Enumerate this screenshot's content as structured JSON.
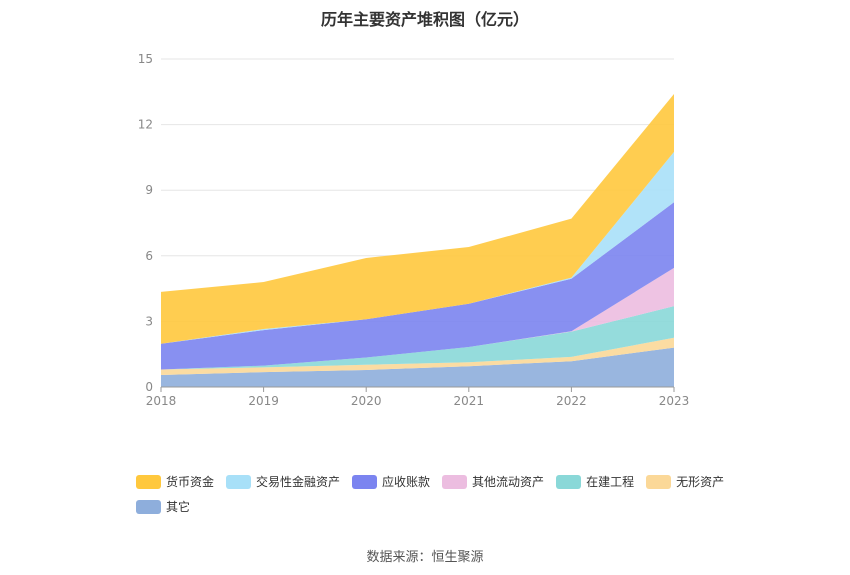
{
  "title": "历年主要资产堆积图（亿元）",
  "source": "数据来源：恒生聚源",
  "chart_data": {
    "type": "area",
    "stacked": true,
    "x": [
      "2018",
      "2019",
      "2020",
      "2021",
      "2022",
      "2023"
    ],
    "ylim": [
      0,
      15
    ],
    "yticks": [
      0,
      3,
      6,
      9,
      12,
      15
    ],
    "grid": true,
    "legend_position": "bottom",
    "series": [
      {
        "name": "其它",
        "color": "#8eaedc",
        "values": [
          0.55,
          0.68,
          0.78,
          0.95,
          1.18,
          1.8
        ]
      },
      {
        "name": "无形资产",
        "color": "#fbd898",
        "values": [
          0.25,
          0.22,
          0.24,
          0.18,
          0.2,
          0.45
        ]
      },
      {
        "name": "在建工程",
        "color": "#8ad8d8",
        "values": [
          0.0,
          0.08,
          0.33,
          0.7,
          1.15,
          1.45
        ]
      },
      {
        "name": "其他流动资产",
        "color": "#ecbde0",
        "values": [
          0.0,
          0.0,
          0.0,
          0.0,
          0.02,
          1.75
        ]
      },
      {
        "name": "应收账款",
        "color": "#7b84f0",
        "values": [
          1.18,
          1.62,
          1.75,
          1.98,
          2.4,
          3.0
        ]
      },
      {
        "name": "交易性金融资产",
        "color": "#a8e0f8",
        "values": [
          0.0,
          0.05,
          0.0,
          0.0,
          0.05,
          2.3
        ]
      },
      {
        "name": "货币资金",
        "color": "#ffc83d",
        "values": [
          2.37,
          2.15,
          2.8,
          2.59,
          2.7,
          2.65
        ]
      }
    ],
    "legend_order": [
      "货币资金",
      "交易性金融资产",
      "应收账款",
      "其他流动资产",
      "在建工程",
      "无形资产",
      "其它"
    ]
  }
}
